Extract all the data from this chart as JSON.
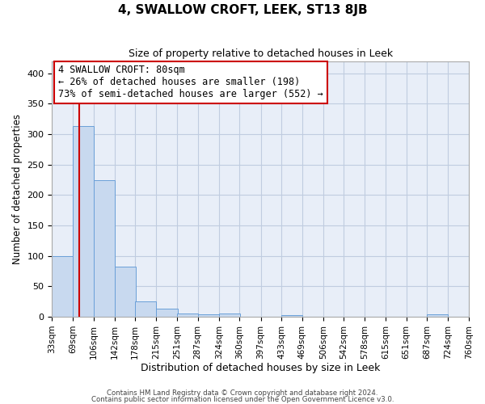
{
  "title": "4, SWALLOW CROFT, LEEK, ST13 8JB",
  "subtitle": "Size of property relative to detached houses in Leek",
  "xlabel": "Distribution of detached houses by size in Leek",
  "ylabel": "Number of detached properties",
  "bin_labels": [
    "33sqm",
    "69sqm",
    "106sqm",
    "142sqm",
    "178sqm",
    "215sqm",
    "251sqm",
    "287sqm",
    "324sqm",
    "360sqm",
    "397sqm",
    "433sqm",
    "469sqm",
    "506sqm",
    "542sqm",
    "578sqm",
    "615sqm",
    "651sqm",
    "687sqm",
    "724sqm",
    "760sqm"
  ],
  "bin_edges": [
    33,
    69,
    106,
    142,
    178,
    215,
    251,
    287,
    324,
    360,
    397,
    433,
    469,
    506,
    542,
    578,
    615,
    651,
    687,
    724,
    760
  ],
  "bar_heights": [
    100,
    313,
    224,
    82,
    26,
    14,
    5,
    4,
    6,
    0,
    0,
    3,
    0,
    0,
    0,
    0,
    0,
    0,
    4,
    0,
    0
  ],
  "bar_color": "#c8d9ef",
  "bar_edge_color": "#6a9fd8",
  "red_line_x": 80,
  "annotation_title": "4 SWALLOW CROFT: 80sqm",
  "annotation_line1": "← 26% of detached houses are smaller (198)",
  "annotation_line2": "73% of semi-detached houses are larger (552) →",
  "annotation_box_color": "#ffffff",
  "annotation_border_color": "#cc0000",
  "ax_bg_color": "#e8eef8",
  "grid_color": "#c0cce0",
  "ylim": [
    0,
    420
  ],
  "yticks": [
    0,
    50,
    100,
    150,
    200,
    250,
    300,
    350,
    400
  ],
  "footer1": "Contains HM Land Registry data © Crown copyright and database right 2024.",
  "footer2": "Contains public sector information licensed under the Open Government Licence v3.0."
}
